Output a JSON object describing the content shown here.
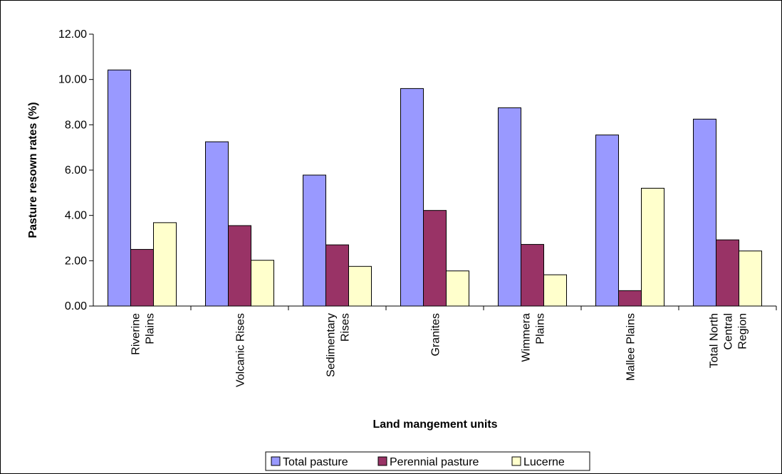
{
  "chart_data": {
    "type": "bar",
    "title": "",
    "xlabel": "Land mangement units",
    "ylabel": "Pasture resown rates (%)",
    "ylim": [
      0,
      12
    ],
    "yticks": [
      "0.00",
      "2.00",
      "4.00",
      "6.00",
      "8.00",
      "10.00",
      "12.00"
    ],
    "grid": false,
    "legend_position": "bottom",
    "categories": [
      [
        "Riverine",
        "Plains"
      ],
      [
        "Volcanic Rises"
      ],
      [
        "Sedimentary",
        "Rises"
      ],
      [
        "Granites"
      ],
      [
        "Wimmera",
        "Plains"
      ],
      [
        "Mallee Plains"
      ],
      [
        "Total North",
        "Central",
        "Region"
      ]
    ],
    "series": [
      {
        "name": "Total pasture",
        "color": "#9999ff",
        "values": [
          10.42,
          7.25,
          5.78,
          9.6,
          8.75,
          7.55,
          8.25
        ]
      },
      {
        "name": "Perennial pasture",
        "color": "#993366",
        "values": [
          2.5,
          3.55,
          2.7,
          4.22,
          2.72,
          0.68,
          2.92
        ]
      },
      {
        "name": "Lucerne",
        "color": "#ffffcc",
        "values": [
          3.68,
          2.02,
          1.75,
          1.55,
          1.38,
          5.2,
          2.43
        ]
      }
    ]
  }
}
